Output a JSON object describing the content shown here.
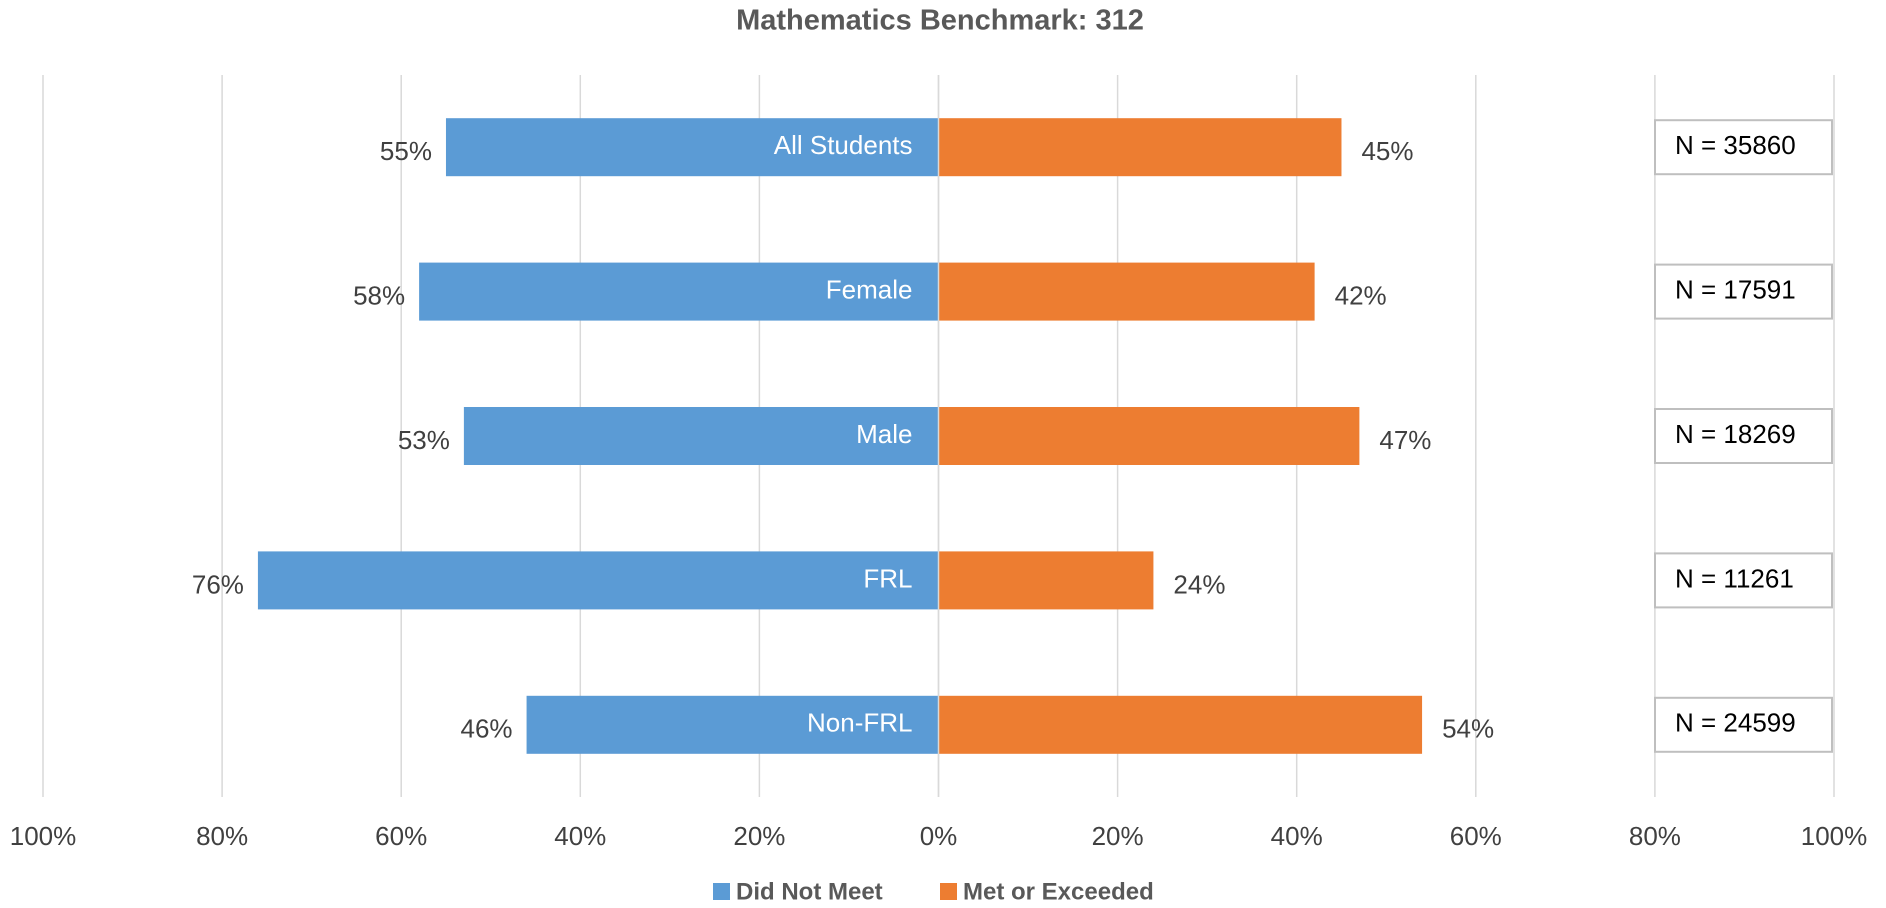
{
  "chart_data": {
    "type": "diverging-bar",
    "title": "Mathematics Benchmark: 312",
    "categories": [
      "All Students",
      "Female",
      "Male",
      "FRL",
      "Non-FRL"
    ],
    "series": [
      {
        "name": "Did Not Meet",
        "color": "#5b9bd5",
        "values": [
          -55,
          -58,
          -53,
          -76,
          -46
        ],
        "value_labels": [
          "55%",
          "58%",
          "53%",
          "76%",
          "46%"
        ]
      },
      {
        "name": "Met or Exceeded",
        "color": "#ed7d31",
        "values": [
          45,
          42,
          47,
          24,
          54
        ],
        "value_labels": [
          "45%",
          "42%",
          "47%",
          "24%",
          "54%"
        ]
      }
    ],
    "annotations": [
      "N = 35860",
      "N = 17591",
      "N = 18269",
      "N = 11261",
      "N = 24599"
    ],
    "xlim": [
      -100,
      100
    ],
    "xticks": [
      {
        "value": -100,
        "label": "100%"
      },
      {
        "value": -80,
        "label": "80%"
      },
      {
        "value": -60,
        "label": "60%"
      },
      {
        "value": -40,
        "label": "40%"
      },
      {
        "value": -20,
        "label": "20%"
      },
      {
        "value": 0,
        "label": "0%"
      },
      {
        "value": 20,
        "label": "20%"
      },
      {
        "value": 40,
        "label": "40%"
      },
      {
        "value": 60,
        "label": "60%"
      },
      {
        "value": 80,
        "label": "80%"
      },
      {
        "value": 100,
        "label": "100%"
      }
    ],
    "grid": true,
    "legend": "bottom"
  }
}
